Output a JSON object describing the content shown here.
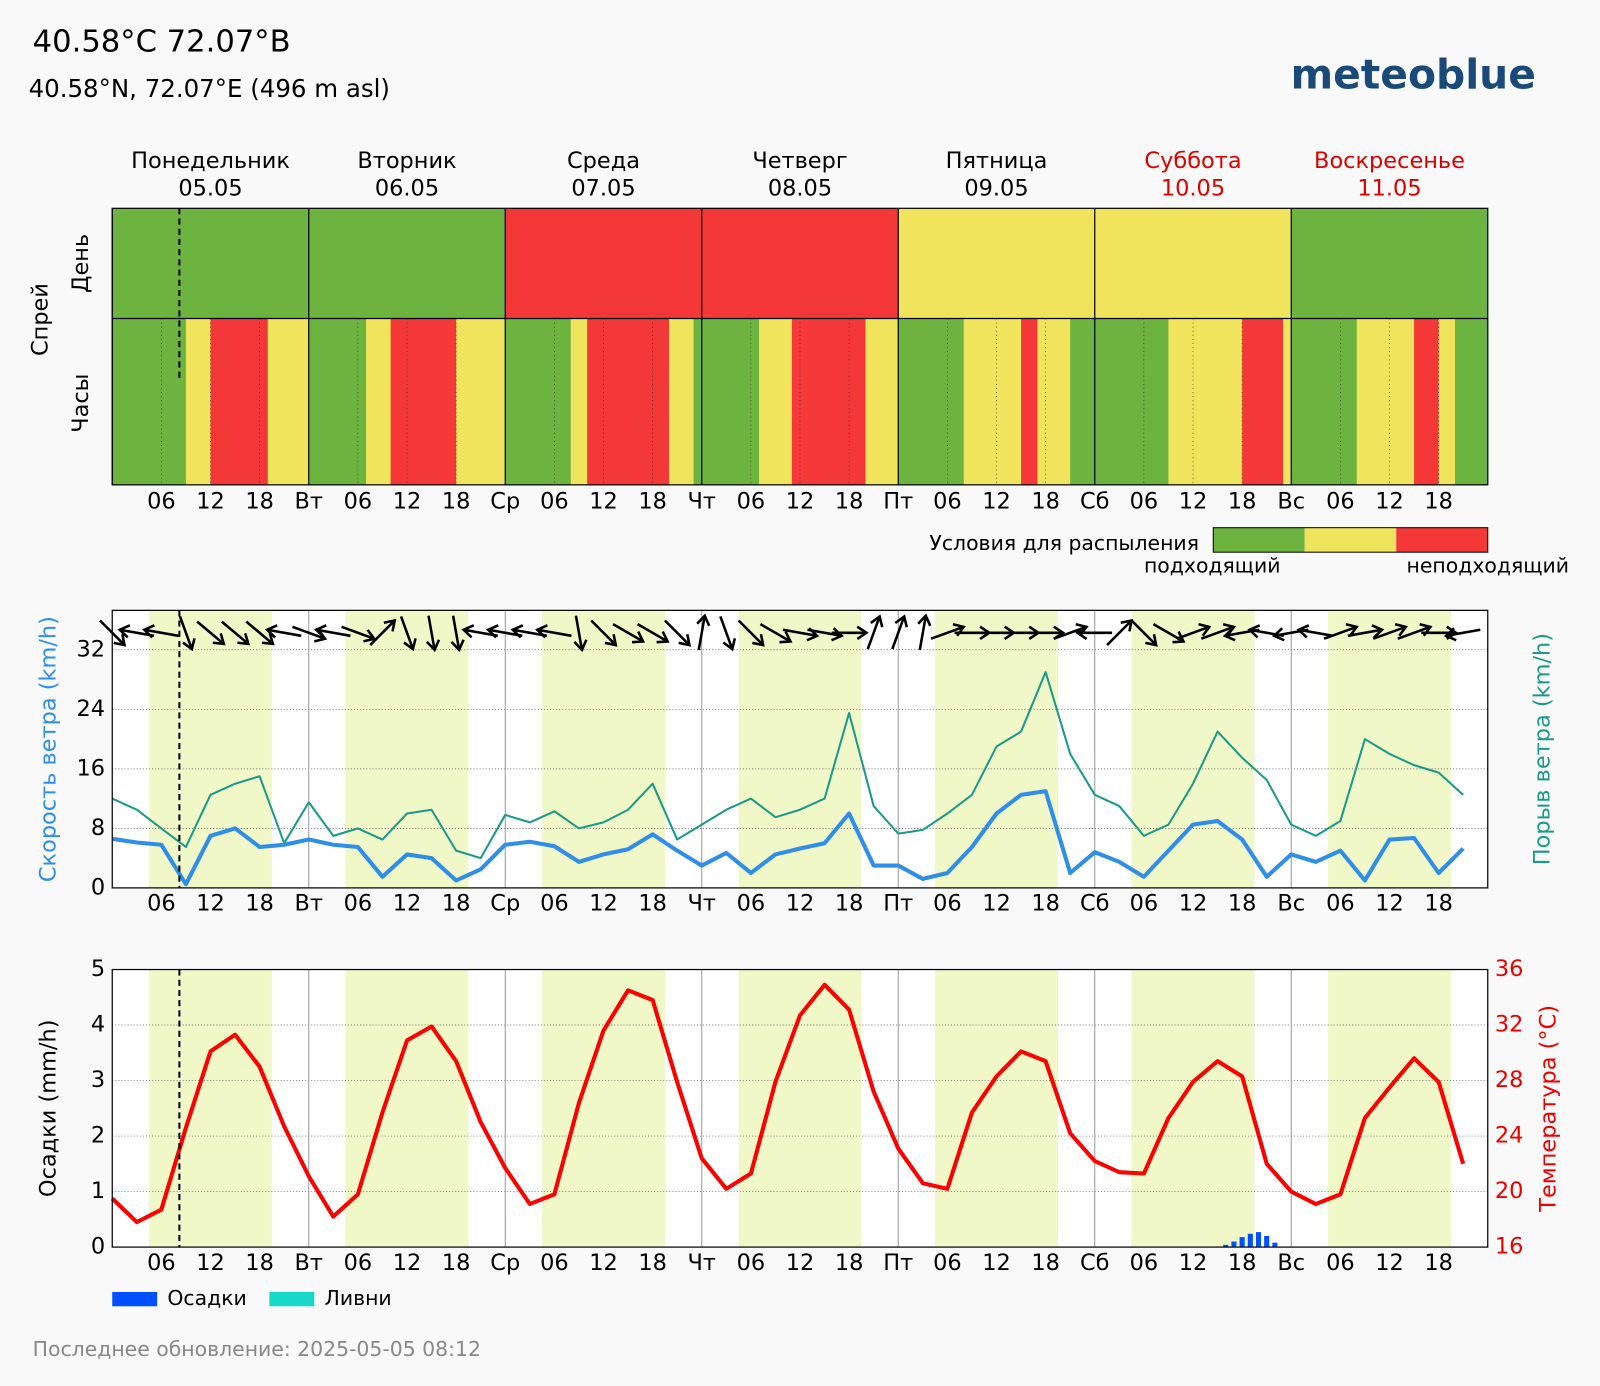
{
  "header": {
    "title": "40.58°C 72.07°B",
    "subtitle": "40.58°N, 72.07°E (496 m asl)",
    "logo": "meteoblue",
    "footer": "Последнее обновление: 2025-05-05 08:12"
  },
  "days": [
    {
      "name": "Понедельник",
      "date": "05.05",
      "abbr": null,
      "weekend": false
    },
    {
      "name": "Вторник",
      "date": "06.05",
      "abbr": "Вт",
      "weekend": false
    },
    {
      "name": "Среда",
      "date": "07.05",
      "abbr": "Ср",
      "weekend": false
    },
    {
      "name": "Четверг",
      "date": "08.05",
      "abbr": "Чт",
      "weekend": false
    },
    {
      "name": "Пятница",
      "date": "09.05",
      "abbr": "Пт",
      "weekend": false
    },
    {
      "name": "Суббота",
      "date": "10.05",
      "abbr": "Сб",
      "weekend": true
    },
    {
      "name": "Воскресенье",
      "date": "11.05",
      "abbr": "Вс",
      "weekend": true
    }
  ],
  "hour_ticks": [
    {
      "value": 6,
      "label": "06"
    },
    {
      "value": 12,
      "label": "12"
    },
    {
      "value": 18,
      "label": "18"
    }
  ],
  "xlim": [
    0,
    168
  ],
  "now_hour": 8.2,
  "daylight": [
    4.5,
    19.5
  ],
  "chart_data": [
    {
      "type": "heatmap",
      "title": "Спрей",
      "row_labels": [
        "День",
        "Часы"
      ],
      "day_ratings": [
        0,
        0,
        2,
        2,
        1,
        1,
        0
      ],
      "hourly_ratings": [
        0,
        0,
        0,
        0,
        0,
        0,
        0,
        0,
        0,
        1,
        1,
        1,
        2,
        2,
        2,
        2,
        2,
        2,
        2,
        1,
        1,
        1,
        1,
        1,
        0,
        0,
        0,
        0,
        0,
        0,
        0,
        1,
        1,
        1,
        2,
        2,
        2,
        2,
        2,
        2,
        2,
        2,
        1,
        1,
        1,
        1,
        1,
        1,
        0,
        0,
        0,
        0,
        0,
        0,
        0,
        0,
        1,
        1,
        2,
        2,
        2,
        2,
        2,
        2,
        2,
        2,
        2,
        2,
        1,
        1,
        1,
        0,
        0,
        0,
        0,
        0,
        0,
        0,
        0,
        1,
        1,
        1,
        1,
        2,
        2,
        2,
        2,
        2,
        2,
        2,
        2,
        2,
        1,
        1,
        1,
        1,
        0,
        0,
        0,
        0,
        0,
        0,
        0,
        0,
        1,
        1,
        1,
        1,
        1,
        1,
        1,
        2,
        2,
        1,
        1,
        1,
        1,
        0,
        0,
        0,
        0,
        0,
        0,
        0,
        0,
        0,
        0,
        0,
        0,
        1,
        1,
        1,
        1,
        1,
        1,
        1,
        1,
        1,
        2,
        2,
        2,
        2,
        2,
        1,
        0,
        0,
        0,
        0,
        0,
        0,
        0,
        0,
        1,
        1,
        1,
        1,
        1,
        1,
        1,
        2,
        2,
        2,
        1,
        1,
        0,
        0,
        0,
        0
      ],
      "colors": [
        "#6db33f",
        "#f0e45c",
        "#f43838"
      ],
      "legend_title": "Условия для распыления",
      "legend_labels": [
        "подходящий",
        "неподходящий"
      ]
    },
    {
      "type": "line",
      "ylim": [
        0,
        37.3
      ],
      "yticks": [
        0,
        8,
        16,
        24,
        32
      ],
      "grid": true,
      "ylabel": "Скорость ветра (km/h)",
      "ylabel_color": "#2e8ee8",
      "y2label": "Порыв ветра (km/h)",
      "y2label_color": "#1a9a8a",
      "x": [
        0,
        3,
        6,
        9,
        12,
        15,
        18,
        21,
        24,
        27,
        30,
        33,
        36,
        39,
        42,
        45,
        48,
        51,
        54,
        57,
        60,
        63,
        66,
        69,
        72,
        75,
        78,
        81,
        84,
        87,
        90,
        93,
        96,
        99,
        102,
        105,
        108,
        111,
        114,
        117,
        120,
        123,
        126,
        129,
        132,
        135,
        138,
        141,
        144,
        147,
        150,
        153,
        156,
        159,
        162,
        165
      ],
      "series": [
        {
          "color": "#1a9a8a",
          "width": 2,
          "values": [
            12,
            10.5,
            8.0,
            5.5,
            12.5,
            14.0,
            15.0,
            6.0,
            11.5,
            7.0,
            8.0,
            6.5,
            10.0,
            10.5,
            5.0,
            4.0,
            9.8,
            8.8,
            10.3,
            8.0,
            8.8,
            10.5,
            14.0,
            6.5,
            8.5,
            10.5,
            12.0,
            9.5,
            10.5,
            12.0,
            23.5,
            11.0,
            7.3,
            7.8,
            10.0,
            12.5,
            19.0,
            21.0,
            29.0,
            18.0,
            12.5,
            11.0,
            7.0,
            8.5,
            14.0,
            21.0,
            17.5,
            14.5,
            8.5,
            7.0,
            9.0,
            20.0,
            18.0,
            16.5,
            15.5,
            12.5
          ]
        },
        {
          "color": "#2e8ee8",
          "width": 4,
          "values": [
            6.6,
            6.1,
            5.8,
            0.5,
            7.0,
            8.0,
            5.5,
            5.8,
            6.5,
            5.8,
            5.5,
            1.5,
            4.5,
            4.0,
            1.0,
            2.5,
            5.8,
            6.2,
            5.6,
            3.5,
            4.5,
            5.2,
            7.2,
            5.0,
            3.0,
            4.7,
            2.0,
            4.5,
            5.3,
            6.0,
            10.0,
            3.0,
            3.0,
            1.2,
            2.0,
            5.5,
            10.0,
            12.5,
            13.0,
            2.0,
            4.8,
            3.5,
            1.5,
            5.0,
            8.5,
            9.0,
            6.5,
            1.5,
            4.5,
            3.5,
            5.0,
            1.0,
            6.5,
            6.7,
            2.0,
            5.3
          ]
        }
      ],
      "wind_direction": [
        315,
        100,
        100,
        340,
        310,
        310,
        310,
        100,
        290,
        100,
        290,
        225,
        340,
        350,
        350,
        100,
        100,
        100,
        100,
        350,
        315,
        300,
        300,
        315,
        190,
        340,
        315,
        300,
        280,
        280,
        270,
        200,
        200,
        190,
        250,
        270,
        270,
        270,
        270,
        250,
        90,
        225,
        315,
        300,
        250,
        250,
        80,
        100,
        80,
        100,
        250,
        260,
        250,
        250,
        270,
        80
      ]
    },
    {
      "type": "line",
      "ylim": [
        0,
        5
      ],
      "yticks": [
        0,
        1,
        2,
        3,
        4,
        5
      ],
      "y2lim": [
        16,
        36
      ],
      "y2ticks": [
        16,
        20,
        24,
        28,
        32,
        36
      ],
      "grid": true,
      "ylabel": "Осадки (mm/h)",
      "ylabel_color": "#000000",
      "y2label": "Температура (°C)",
      "y2label_color": "#ee0000",
      "x": [
        0,
        3,
        6,
        9,
        12,
        15,
        18,
        21,
        24,
        27,
        30,
        33,
        36,
        39,
        42,
        45,
        48,
        51,
        54,
        57,
        60,
        63,
        66,
        69,
        72,
        75,
        78,
        81,
        84,
        87,
        90,
        93,
        96,
        99,
        102,
        105,
        108,
        111,
        114,
        117,
        120,
        123,
        126,
        129,
        132,
        135,
        138,
        141,
        144,
        147,
        150,
        153,
        156,
        159,
        162,
        165
      ],
      "series": [
        {
          "color": "#ff0000",
          "width": 4,
          "axis": "y2",
          "values": [
            19.5,
            17.8,
            18.7,
            24.6,
            30.1,
            31.3,
            29.0,
            24.7,
            21.1,
            18.2,
            19.8,
            25.7,
            30.9,
            31.9,
            29.4,
            25.0,
            21.7,
            19.1,
            19.8,
            26.4,
            31.6,
            34.5,
            33.8,
            27.9,
            22.4,
            20.2,
            21.3,
            27.9,
            32.7,
            34.9,
            33.1,
            27.2,
            23.1,
            20.6,
            20.2,
            25.7,
            28.3,
            30.1,
            29.4,
            24.2,
            22.2,
            21.4,
            21.3,
            25.3,
            27.9,
            29.4,
            28.3,
            22.0,
            20.0,
            19.1,
            19.8,
            25.3,
            27.5,
            29.6,
            27.9,
            22.0
          ]
        }
      ],
      "bars": {
        "color": "#0050ff",
        "x": [
          125,
          126,
          136,
          137,
          138,
          139,
          140,
          141,
          142
        ],
        "values": [
          0.01,
          0.01,
          0.04,
          0.1,
          0.18,
          0.24,
          0.27,
          0.2,
          0.08
        ]
      },
      "legend": [
        {
          "name": "Осадки",
          "color": "#0050ff"
        },
        {
          "name": "Ливни",
          "color": "#18d8c8"
        }
      ]
    }
  ]
}
